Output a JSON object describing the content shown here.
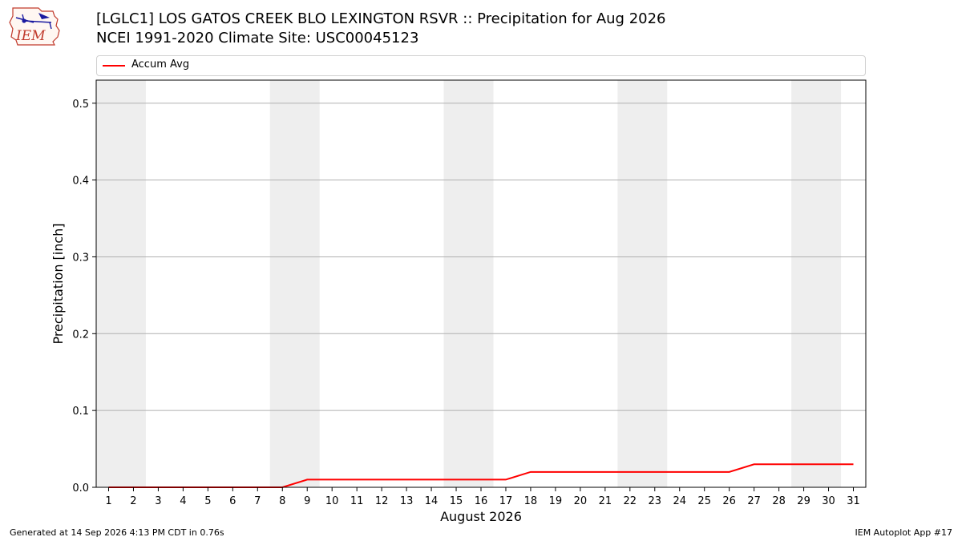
{
  "header": {
    "title_line1": "[LGLC1] LOS GATOS CREEK BLO LEXINGTON RSVR :: Precipitation for Aug 2026",
    "title_line2": "NCEI 1991-2020 Climate Site: USC00045123"
  },
  "logo": {
    "text": "IEM",
    "icon": "iem-logo-icon"
  },
  "footer": {
    "left": "Generated at 14 Sep 2026 4:13 PM CDT in 0.76s",
    "right": "IEM Autoplot App #17"
  },
  "colors": {
    "series": "#ff0000",
    "weekend_band": "#eeeeee",
    "grid": "#b0b0b0"
  },
  "chart_data": {
    "type": "line",
    "xlabel": "August 2026",
    "ylabel": "Precipitation [inch]",
    "x": [
      1,
      2,
      3,
      4,
      5,
      6,
      7,
      8,
      9,
      10,
      11,
      12,
      13,
      14,
      15,
      16,
      17,
      18,
      19,
      20,
      21,
      22,
      23,
      24,
      25,
      26,
      27,
      28,
      29,
      30,
      31
    ],
    "xlim": [
      0.5,
      31.5
    ],
    "ylim": [
      0,
      0.53
    ],
    "yticks": [
      0.0,
      0.1,
      0.2,
      0.3,
      0.4,
      0.5
    ],
    "ytick_labels": [
      "0.0",
      "0.1",
      "0.2",
      "0.3",
      "0.4",
      "0.5"
    ],
    "grid": "horizontal",
    "legend": "top",
    "weekend_days": [
      1,
      2,
      8,
      9,
      15,
      16,
      22,
      23,
      29,
      30
    ],
    "series": [
      {
        "name": "Accum Avg",
        "color": "#ff0000",
        "values": [
          0,
          0,
          0,
          0,
          0,
          0,
          0,
          0,
          0.01,
          0.01,
          0.01,
          0.01,
          0.01,
          0.01,
          0.01,
          0.01,
          0.01,
          0.02,
          0.02,
          0.02,
          0.02,
          0.02,
          0.02,
          0.02,
          0.02,
          0.02,
          0.03,
          0.03,
          0.03,
          0.03,
          0.03
        ]
      }
    ]
  }
}
